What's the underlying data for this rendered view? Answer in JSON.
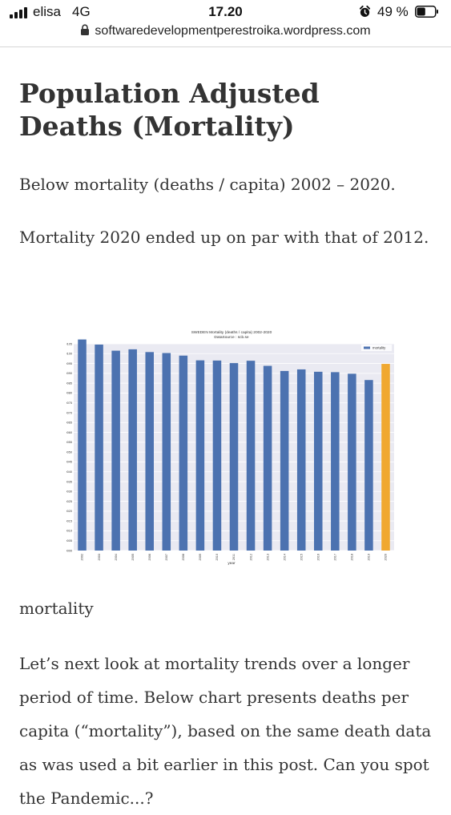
{
  "status_bar": {
    "carrier": "elisa",
    "network": "4G",
    "time": "17.20",
    "battery_percent": "49 %",
    "battery_level": 0.49,
    "icons": [
      "signal-icon",
      "alarm-icon",
      "battery-icon"
    ]
  },
  "browser": {
    "url": "softwaredevelopmentperestroika.wordpress.com",
    "icons": [
      "lock-icon"
    ]
  },
  "article": {
    "title_line1": "Population Adjusted",
    "title_line2": "Deaths (Mortality)",
    "para1": "Below mortality (deaths / capita) 2002 – 2020.",
    "para2": "Mortality 2020 ended up on par with that of 2012.",
    "caption": "mortality",
    "para3": "Let’s next look at mortality trends over a longer period of time. Below chart presents deaths per capita (“mortality”), based on the same death data as was used a bit earlier in this post. Can you spot the Pandemic...?"
  },
  "chart_data": {
    "type": "bar",
    "title": "SWEDEN Mortality (deaths / capita) 2002-2020",
    "subtitle": "DataSource : scb.se",
    "xlabel": "year",
    "ylabel": "mortality",
    "legend": "mortality",
    "legend_position": "top-right",
    "grid": true,
    "ylim": [
      0,
      0.0105
    ],
    "yticks": [
      "0.0000",
      "0.0005",
      "0.0010",
      "0.0015",
      "0.0020",
      "0.0025",
      "0.0030",
      "0.0035",
      "0.0040",
      "0.0045",
      "0.0050",
      "0.0055",
      "0.0060",
      "0.0065",
      "0.0070",
      "0.0075",
      "0.0080",
      "0.0085",
      "0.0090",
      "0.0095",
      "0.0100",
      "0.0105"
    ],
    "categories": [
      "2002",
      "2003",
      "2004",
      "2005",
      "2006",
      "2007",
      "2008",
      "2009",
      "2010",
      "2011",
      "2012",
      "2013",
      "2014",
      "2015",
      "2016",
      "2017",
      "2018",
      "2019",
      "2020"
    ],
    "values": [
      0.01072,
      0.01046,
      0.01015,
      0.01022,
      0.01008,
      0.01003,
      0.0099,
      0.00966,
      0.00965,
      0.00952,
      0.00964,
      0.00938,
      0.00912,
      0.0092,
      0.00908,
      0.00906,
      0.00898,
      0.00866,
      0.00948
    ],
    "colors": {
      "default": "#4c72b0",
      "highlight": "#f0a830"
    },
    "highlight_index": 18
  }
}
